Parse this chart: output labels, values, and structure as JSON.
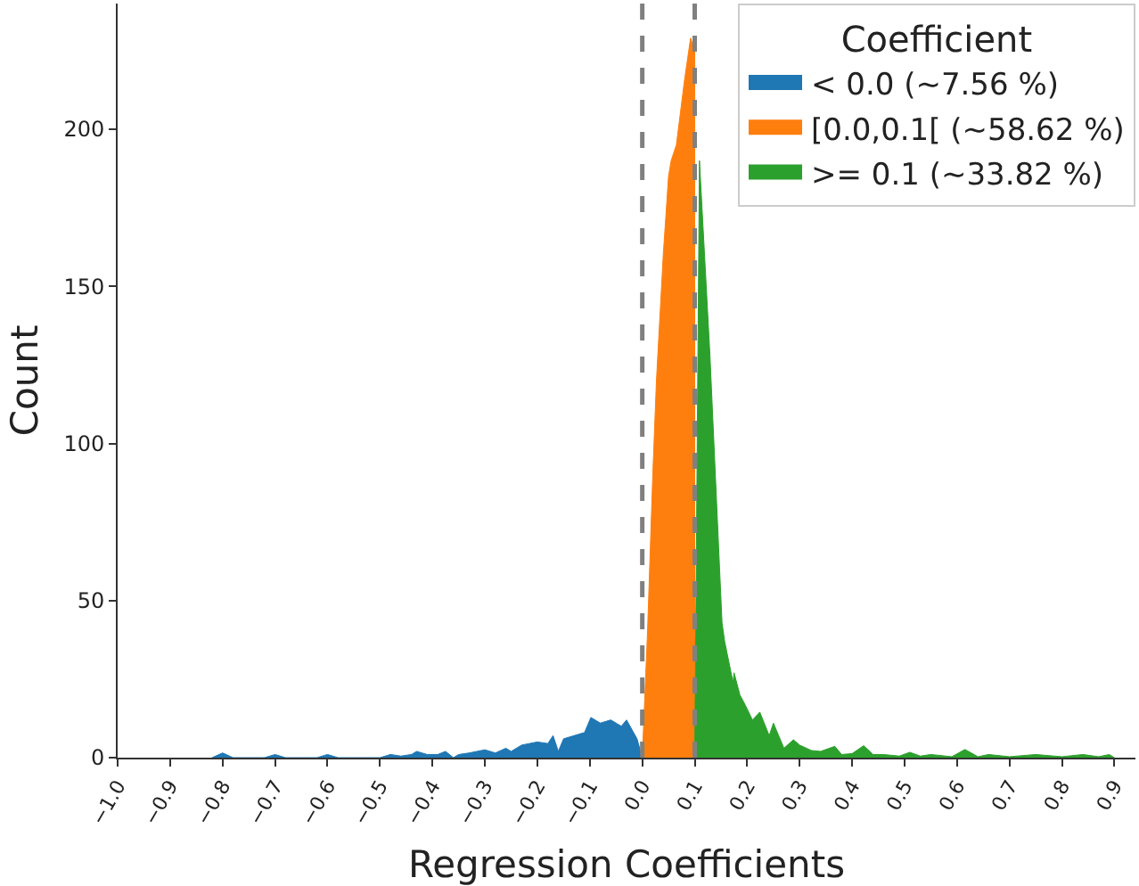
{
  "chart_data": {
    "type": "area",
    "xlabel": "Regression Coefficients",
    "ylabel": "Count",
    "legend_title": "Coefficient",
    "series": [
      {
        "name": "< 0.0 (~7.56 %)",
        "color": "#1f77b4",
        "x": [
          -0.82,
          -0.8,
          -0.78,
          -0.72,
          -0.7,
          -0.68,
          -0.62,
          -0.6,
          -0.58,
          -0.5,
          -0.48,
          -0.46,
          -0.44,
          -0.43,
          -0.41,
          -0.39,
          -0.375,
          -0.36,
          -0.35,
          -0.33,
          -0.3,
          -0.28,
          -0.26,
          -0.25,
          -0.23,
          -0.2,
          -0.18,
          -0.17,
          -0.16,
          -0.15,
          -0.13,
          -0.11,
          -0.098,
          -0.08,
          -0.06,
          -0.04,
          -0.03,
          -0.01,
          0.0
        ],
        "values": [
          0,
          1.5,
          0,
          0,
          1,
          0,
          0,
          1,
          0,
          0,
          1,
          0.5,
          1,
          2,
          1,
          1,
          2,
          0,
          1,
          1.5,
          2.5,
          1.5,
          3,
          2,
          4,
          5,
          4.5,
          7,
          2,
          6,
          7,
          8,
          12.8,
          11,
          12,
          10,
          12,
          6,
          0
        ]
      },
      {
        "name": "[0.0,0.1[ (~58.62 %)",
        "color": "#ff7f0e",
        "x": [
          0.0,
          0.01,
          0.02,
          0.027,
          0.04,
          0.05,
          0.055,
          0.065,
          0.08,
          0.092,
          0.1,
          0.1
        ],
        "values": [
          0,
          40,
          90,
          120,
          160,
          185,
          190,
          195,
          215,
          229,
          225,
          0
        ]
      },
      {
        "name": ">= 0.1 (~33.82 %)",
        "color": "#2ca02c",
        "x": [
          0.1,
          0.109,
          0.129,
          0.152,
          0.157,
          0.173,
          0.175,
          0.186,
          0.197,
          0.21,
          0.224,
          0.242,
          0.25,
          0.27,
          0.288,
          0.3,
          0.322,
          0.34,
          0.367,
          0.38,
          0.4,
          0.422,
          0.44,
          0.46,
          0.49,
          0.51,
          0.53,
          0.55,
          0.59,
          0.615,
          0.64,
          0.66,
          0.7,
          0.75,
          0.8,
          0.84,
          0.87,
          0.89,
          0.9
        ],
        "values": [
          0,
          190,
          128,
          43,
          37,
          24,
          27,
          20,
          16.5,
          12,
          14.5,
          7,
          11,
          3,
          5.7,
          4,
          2.3,
          2,
          3.6,
          1,
          1.3,
          3.8,
          1,
          1,
          0.5,
          1.7,
          0.5,
          1,
          0.3,
          2.6,
          0.3,
          1,
          0.3,
          1,
          0.3,
          1,
          0.3,
          1,
          0
        ]
      }
    ],
    "xlim": [
      -1.0,
      0.94
    ],
    "ylim": [
      0,
      240
    ],
    "xticks": [
      {
        "value": -1.0,
        "label": "−1.0"
      },
      {
        "value": -0.9,
        "label": "−0.9"
      },
      {
        "value": -0.8,
        "label": "−0.8"
      },
      {
        "value": -0.7,
        "label": "−0.7"
      },
      {
        "value": -0.6,
        "label": "−0.6"
      },
      {
        "value": -0.5,
        "label": "−0.5"
      },
      {
        "value": -0.4,
        "label": "−0.4"
      },
      {
        "value": -0.3,
        "label": "−0.3"
      },
      {
        "value": -0.2,
        "label": "−0.2"
      },
      {
        "value": -0.1,
        "label": "−0.1"
      },
      {
        "value": 0.0,
        "label": "0.0"
      },
      {
        "value": 0.1,
        "label": "0.1"
      },
      {
        "value": 0.2,
        "label": "0.2"
      },
      {
        "value": 0.3,
        "label": "0.3"
      },
      {
        "value": 0.4,
        "label": "0.4"
      },
      {
        "value": 0.5,
        "label": "0.5"
      },
      {
        "value": 0.6,
        "label": "0.6"
      },
      {
        "value": 0.7,
        "label": "0.7"
      },
      {
        "value": 0.8,
        "label": "0.8"
      },
      {
        "value": 0.9,
        "label": "0.9"
      }
    ],
    "yticks": [
      0,
      50,
      100,
      150,
      200
    ],
    "ref_lines": [
      {
        "axis": "x",
        "value": 0.0,
        "color": "#808080",
        "line_style": "dashed"
      },
      {
        "axis": "x",
        "value": 0.1,
        "color": "#808080",
        "line_style": "dashed"
      }
    ],
    "legend": "top right"
  }
}
